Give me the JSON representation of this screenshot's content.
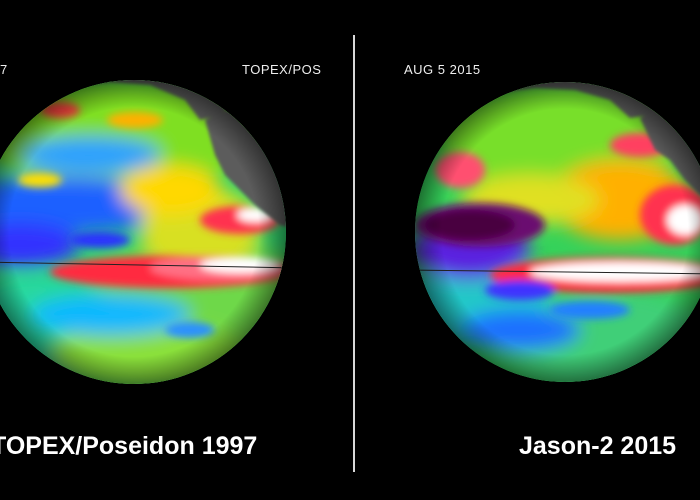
{
  "left_panel": {
    "corner_label": "7",
    "top_label": "TOPEX/POS",
    "caption": "TOPEX/Poseidon 1997"
  },
  "right_panel": {
    "top_label": "AUG  5  2015",
    "caption": "Jason-2 2015"
  },
  "colors": {
    "background": "#000000",
    "divider": "#d9d9d9",
    "land": "#5c5c5c",
    "colormap": [
      "#4b004f",
      "#2020ff",
      "#00c0ff",
      "#00e08a",
      "#7ce000",
      "#ffe500",
      "#ff6a00",
      "#ff1030",
      "#ffffff"
    ]
  }
}
